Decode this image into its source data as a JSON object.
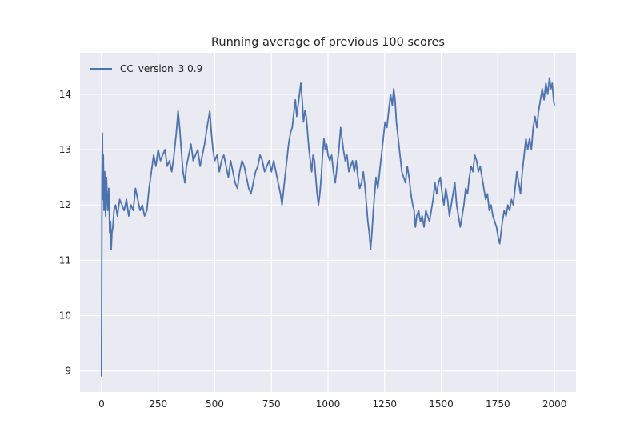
{
  "chart_data": {
    "type": "line",
    "title": "Running average of previous 100 scores",
    "xlabel": "",
    "ylabel": "",
    "xlim": [
      -95,
      2095
    ],
    "ylim": [
      8.62,
      14.75
    ],
    "xticks": [
      0,
      250,
      500,
      750,
      1000,
      1250,
      1500,
      1750,
      2000
    ],
    "xtick_labels": [
      "0",
      "250",
      "500",
      "750",
      "1000",
      "1250",
      "1500",
      "1750",
      "2000"
    ],
    "yticks": [
      9,
      10,
      11,
      12,
      13,
      14
    ],
    "ytick_labels": [
      "9",
      "10",
      "11",
      "12",
      "13",
      "14"
    ],
    "grid": true,
    "legend_position": "top-left",
    "colors": {
      "background": "#eaeaf2",
      "grid": "#ffffff",
      "line": "#4c72b0",
      "text": "#222222"
    },
    "series": [
      {
        "name": "CC_version_3 0.9",
        "points": [
          [
            0,
            8.9
          ],
          [
            2,
            12.5
          ],
          [
            4,
            13.3
          ],
          [
            6,
            12.1
          ],
          [
            8,
            12.9
          ],
          [
            11,
            11.9
          ],
          [
            14,
            12.6
          ],
          [
            18,
            11.8
          ],
          [
            22,
            12.5
          ],
          [
            27,
            11.9
          ],
          [
            32,
            12.3
          ],
          [
            36,
            11.5
          ],
          [
            40,
            11.7
          ],
          [
            43,
            11.2
          ],
          [
            46,
            11.5
          ],
          [
            50,
            11.6
          ],
          [
            55,
            11.9
          ],
          [
            62,
            12.0
          ],
          [
            70,
            11.8
          ],
          [
            80,
            12.1
          ],
          [
            90,
            12.0
          ],
          [
            100,
            11.9
          ],
          [
            110,
            12.1
          ],
          [
            120,
            11.8
          ],
          [
            130,
            12.0
          ],
          [
            140,
            11.9
          ],
          [
            150,
            12.3
          ],
          [
            160,
            12.1
          ],
          [
            170,
            11.9
          ],
          [
            180,
            12.0
          ],
          [
            190,
            11.8
          ],
          [
            200,
            11.9
          ],
          [
            210,
            12.3
          ],
          [
            220,
            12.6
          ],
          [
            230,
            12.9
          ],
          [
            240,
            12.7
          ],
          [
            250,
            13.0
          ],
          [
            260,
            12.8
          ],
          [
            270,
            12.9
          ],
          [
            280,
            13.0
          ],
          [
            290,
            12.7
          ],
          [
            300,
            12.8
          ],
          [
            310,
            12.6
          ],
          [
            320,
            12.9
          ],
          [
            330,
            13.3
          ],
          [
            338,
            13.7
          ],
          [
            345,
            13.4
          ],
          [
            352,
            13.0
          ],
          [
            360,
            12.6
          ],
          [
            368,
            12.4
          ],
          [
            375,
            12.7
          ],
          [
            385,
            12.9
          ],
          [
            395,
            13.1
          ],
          [
            405,
            12.8
          ],
          [
            415,
            12.9
          ],
          [
            425,
            13.0
          ],
          [
            435,
            12.7
          ],
          [
            445,
            12.9
          ],
          [
            455,
            13.1
          ],
          [
            462,
            13.3
          ],
          [
            470,
            13.5
          ],
          [
            478,
            13.7
          ],
          [
            485,
            13.3
          ],
          [
            492,
            13.0
          ],
          [
            500,
            12.8
          ],
          [
            510,
            12.9
          ],
          [
            520,
            12.6
          ],
          [
            530,
            12.8
          ],
          [
            540,
            12.9
          ],
          [
            550,
            12.7
          ],
          [
            560,
            12.5
          ],
          [
            570,
            12.8
          ],
          [
            580,
            12.6
          ],
          [
            590,
            12.4
          ],
          [
            600,
            12.3
          ],
          [
            610,
            12.6
          ],
          [
            620,
            12.8
          ],
          [
            630,
            12.7
          ],
          [
            640,
            12.5
          ],
          [
            650,
            12.3
          ],
          [
            660,
            12.2
          ],
          [
            670,
            12.4
          ],
          [
            680,
            12.6
          ],
          [
            690,
            12.7
          ],
          [
            700,
            12.9
          ],
          [
            710,
            12.8
          ],
          [
            720,
            12.6
          ],
          [
            730,
            12.7
          ],
          [
            740,
            12.8
          ],
          [
            750,
            12.6
          ],
          [
            760,
            12.8
          ],
          [
            770,
            12.6
          ],
          [
            780,
            12.4
          ],
          [
            790,
            12.2
          ],
          [
            797,
            12.0
          ],
          [
            802,
            12.2
          ],
          [
            810,
            12.5
          ],
          [
            818,
            12.8
          ],
          [
            826,
            13.1
          ],
          [
            834,
            13.3
          ],
          [
            842,
            13.4
          ],
          [
            850,
            13.7
          ],
          [
            856,
            13.9
          ],
          [
            862,
            13.6
          ],
          [
            868,
            13.8
          ],
          [
            874,
            14.0
          ],
          [
            880,
            14.2
          ],
          [
            886,
            13.9
          ],
          [
            892,
            13.5
          ],
          [
            898,
            13.7
          ],
          [
            904,
            13.6
          ],
          [
            910,
            13.3
          ],
          [
            916,
            13.0
          ],
          [
            922,
            12.8
          ],
          [
            928,
            12.6
          ],
          [
            934,
            12.9
          ],
          [
            940,
            12.8
          ],
          [
            946,
            12.5
          ],
          [
            952,
            12.2
          ],
          [
            958,
            12.0
          ],
          [
            964,
            12.2
          ],
          [
            970,
            12.5
          ],
          [
            976,
            12.9
          ],
          [
            982,
            13.2
          ],
          [
            988,
            13.0
          ],
          [
            994,
            13.1
          ],
          [
            1000,
            12.9
          ],
          [
            1008,
            12.8
          ],
          [
            1016,
            12.9
          ],
          [
            1024,
            12.6
          ],
          [
            1032,
            12.4
          ],
          [
            1040,
            12.7
          ],
          [
            1048,
            13.0
          ],
          [
            1056,
            13.4
          ],
          [
            1062,
            13.2
          ],
          [
            1068,
            13.0
          ],
          [
            1076,
            12.8
          ],
          [
            1084,
            12.9
          ],
          [
            1092,
            12.6
          ],
          [
            1100,
            12.7
          ],
          [
            1108,
            12.8
          ],
          [
            1116,
            12.6
          ],
          [
            1124,
            12.8
          ],
          [
            1132,
            12.5
          ],
          [
            1140,
            12.3
          ],
          [
            1148,
            12.4
          ],
          [
            1156,
            12.6
          ],
          [
            1164,
            12.3
          ],
          [
            1170,
            12.0
          ],
          [
            1176,
            11.7
          ],
          [
            1182,
            11.5
          ],
          [
            1188,
            11.2
          ],
          [
            1194,
            11.5
          ],
          [
            1200,
            11.9
          ],
          [
            1206,
            12.2
          ],
          [
            1212,
            12.5
          ],
          [
            1220,
            12.3
          ],
          [
            1228,
            12.6
          ],
          [
            1236,
            12.9
          ],
          [
            1244,
            13.2
          ],
          [
            1252,
            13.5
          ],
          [
            1260,
            13.4
          ],
          [
            1268,
            13.7
          ],
          [
            1276,
            14.0
          ],
          [
            1284,
            13.8
          ],
          [
            1290,
            14.1
          ],
          [
            1296,
            13.9
          ],
          [
            1302,
            13.5
          ],
          [
            1310,
            13.2
          ],
          [
            1318,
            12.9
          ],
          [
            1326,
            12.6
          ],
          [
            1334,
            12.5
          ],
          [
            1342,
            12.4
          ],
          [
            1350,
            12.7
          ],
          [
            1358,
            12.5
          ],
          [
            1366,
            12.2
          ],
          [
            1374,
            12.0
          ],
          [
            1380,
            11.9
          ],
          [
            1386,
            11.6
          ],
          [
            1392,
            11.8
          ],
          [
            1400,
            11.9
          ],
          [
            1408,
            11.7
          ],
          [
            1416,
            11.8
          ],
          [
            1424,
            11.6
          ],
          [
            1432,
            11.9
          ],
          [
            1440,
            11.8
          ],
          [
            1448,
            11.7
          ],
          [
            1456,
            11.9
          ],
          [
            1464,
            12.1
          ],
          [
            1472,
            12.4
          ],
          [
            1480,
            12.2
          ],
          [
            1488,
            12.4
          ],
          [
            1496,
            12.5
          ],
          [
            1504,
            12.2
          ],
          [
            1512,
            12.0
          ],
          [
            1520,
            12.3
          ],
          [
            1528,
            12.1
          ],
          [
            1536,
            11.8
          ],
          [
            1544,
            12.0
          ],
          [
            1552,
            12.2
          ],
          [
            1560,
            12.4
          ],
          [
            1568,
            12.0
          ],
          [
            1576,
            11.8
          ],
          [
            1584,
            11.6
          ],
          [
            1592,
            11.8
          ],
          [
            1600,
            12.0
          ],
          [
            1608,
            12.3
          ],
          [
            1616,
            12.2
          ],
          [
            1624,
            12.5
          ],
          [
            1632,
            12.7
          ],
          [
            1640,
            12.6
          ],
          [
            1648,
            12.9
          ],
          [
            1656,
            12.8
          ],
          [
            1664,
            12.6
          ],
          [
            1672,
            12.7
          ],
          [
            1680,
            12.5
          ],
          [
            1688,
            12.3
          ],
          [
            1696,
            12.1
          ],
          [
            1704,
            12.2
          ],
          [
            1712,
            11.9
          ],
          [
            1720,
            12.0
          ],
          [
            1728,
            11.8
          ],
          [
            1736,
            11.7
          ],
          [
            1744,
            11.6
          ],
          [
            1752,
            11.4
          ],
          [
            1758,
            11.3
          ],
          [
            1764,
            11.5
          ],
          [
            1770,
            11.7
          ],
          [
            1778,
            11.9
          ],
          [
            1786,
            11.8
          ],
          [
            1794,
            12.0
          ],
          [
            1802,
            11.9
          ],
          [
            1810,
            12.1
          ],
          [
            1818,
            12.0
          ],
          [
            1826,
            12.3
          ],
          [
            1834,
            12.6
          ],
          [
            1842,
            12.4
          ],
          [
            1850,
            12.2
          ],
          [
            1858,
            12.6
          ],
          [
            1866,
            12.9
          ],
          [
            1874,
            13.2
          ],
          [
            1882,
            13.0
          ],
          [
            1890,
            13.2
          ],
          [
            1898,
            13.0
          ],
          [
            1906,
            13.4
          ],
          [
            1914,
            13.6
          ],
          [
            1922,
            13.4
          ],
          [
            1930,
            13.7
          ],
          [
            1938,
            13.9
          ],
          [
            1946,
            14.1
          ],
          [
            1954,
            13.9
          ],
          [
            1962,
            14.2
          ],
          [
            1970,
            14.0
          ],
          [
            1978,
            14.3
          ],
          [
            1984,
            14.1
          ],
          [
            1990,
            14.2
          ],
          [
            1996,
            13.9
          ],
          [
            2000,
            13.8
          ]
        ]
      }
    ]
  }
}
